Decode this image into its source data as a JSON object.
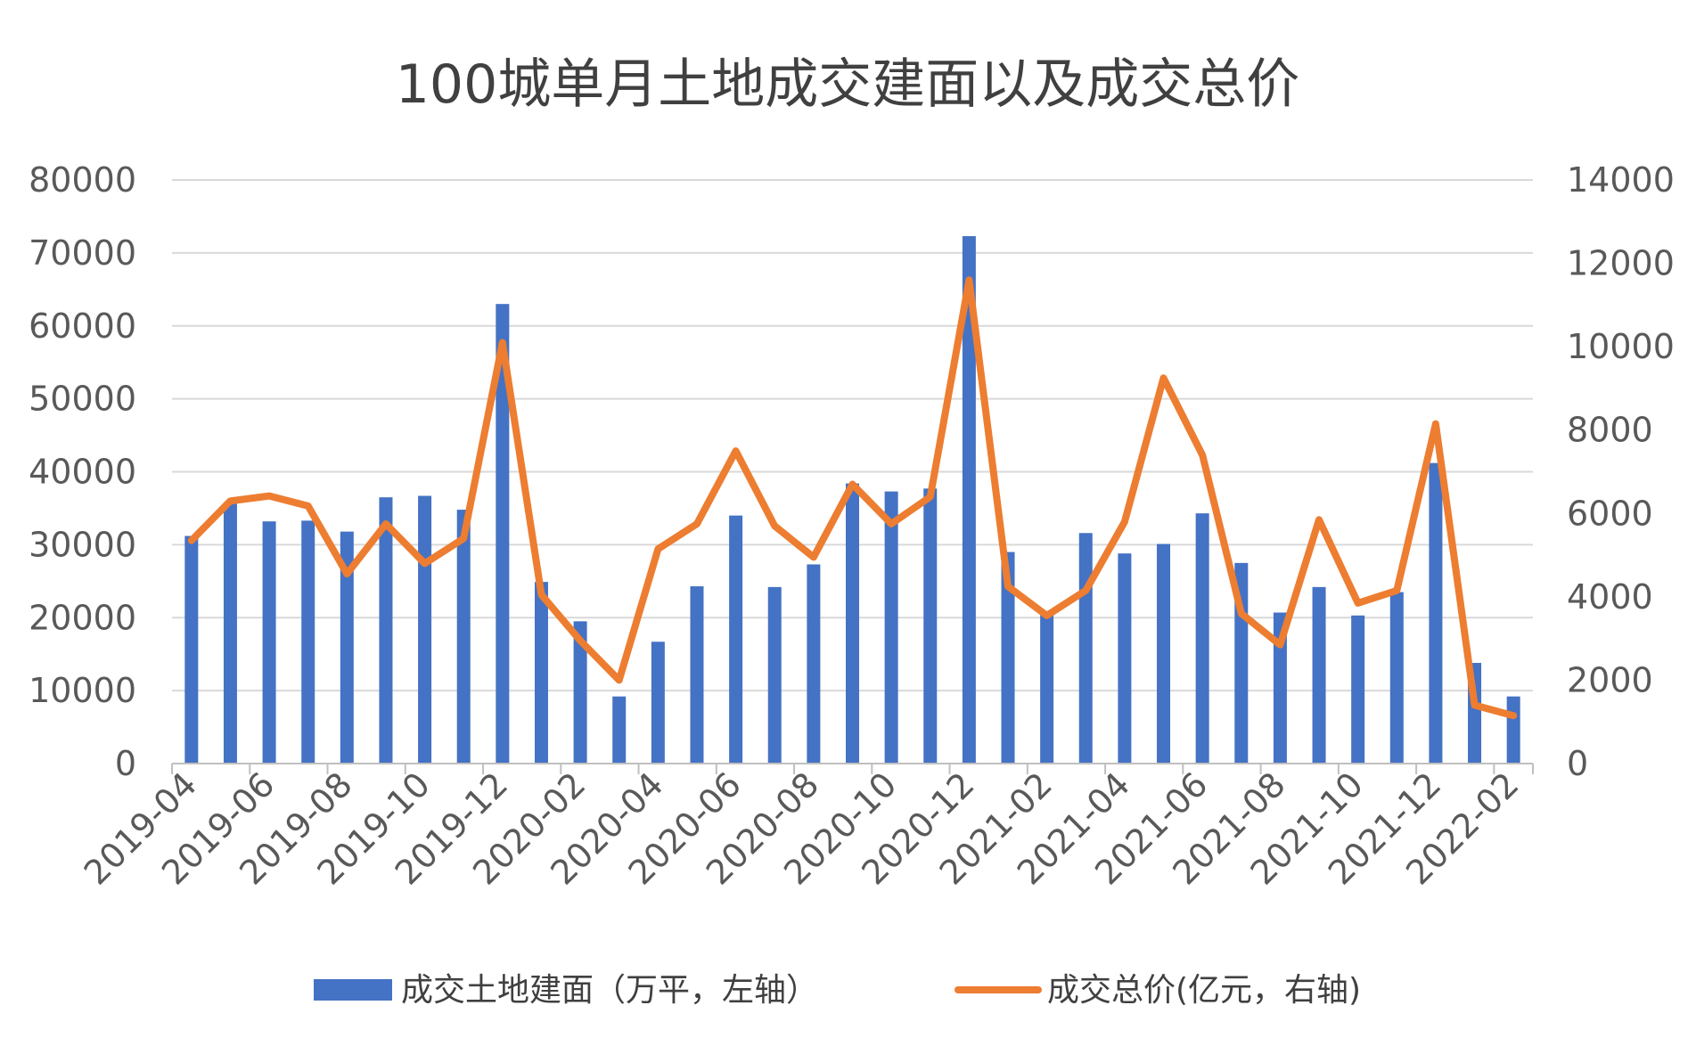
{
  "chart_data": {
    "type": "bar",
    "title": "100城单月土地成交建面以及成交总价",
    "categories": [
      "2019-04",
      "2019-05",
      "2019-06",
      "2019-07",
      "2019-08",
      "2019-09",
      "2019-10",
      "2019-11",
      "2019-12",
      "2020-01",
      "2020-02",
      "2020-03",
      "2020-04",
      "2020-05",
      "2020-06",
      "2020-07",
      "2020-08",
      "2020-09",
      "2020-10",
      "2020-11",
      "2020-12",
      "2021-01",
      "2021-02",
      "2021-03",
      "2021-04",
      "2021-05",
      "2021-06",
      "2021-07",
      "2021-08",
      "2021-09",
      "2021-10",
      "2021-11",
      "2021-12",
      "2022-01",
      "2022-02"
    ],
    "x_tick_labels": [
      "2019-04",
      "2019-06",
      "2019-08",
      "2019-10",
      "2019-12",
      "2020-02",
      "2020-04",
      "2020-06",
      "2020-08",
      "2020-10",
      "2020-12",
      "2021-02",
      "2021-04",
      "2021-06",
      "2021-08",
      "2021-10",
      "2021-12",
      "2022-02"
    ],
    "series": [
      {
        "name": "成交土地建面（万平，左轴）",
        "type": "bar",
        "axis": "left",
        "color": "#4472C4",
        "values": [
          31200,
          35800,
          33200,
          33300,
          31800,
          36500,
          36700,
          34800,
          63000,
          24900,
          19500,
          9200,
          16700,
          24300,
          34000,
          24200,
          27300,
          38400,
          37300,
          37700,
          72300,
          29000,
          20500,
          31600,
          28800,
          30100,
          34300,
          27500,
          20700,
          24200,
          20300,
          23500,
          41200,
          13800,
          9200
        ]
      },
      {
        "name": "成交总价(亿元，右轴)",
        "type": "line",
        "axis": "right",
        "color": "#ED7D31",
        "values": [
          5350,
          6300,
          6420,
          6180,
          4550,
          5750,
          4800,
          5400,
          10100,
          4050,
          2950,
          2000,
          5150,
          5750,
          7500,
          5700,
          4950,
          6700,
          5750,
          6400,
          11600,
          4250,
          3550,
          4150,
          5800,
          9250,
          7400,
          3600,
          2850,
          5850,
          3850,
          4150,
          8150,
          1400,
          1150
        ]
      }
    ],
    "ylim_left": [
      0,
      80000
    ],
    "yticks_left": [
      "0",
      "10000",
      "20000",
      "30000",
      "40000",
      "50000",
      "60000",
      "70000",
      "80000"
    ],
    "ylim_right": [
      0,
      14000
    ],
    "yticks_right": [
      "0",
      "2000",
      "4000",
      "6000",
      "8000",
      "10000",
      "12000",
      "14000"
    ],
    "grid": true,
    "legend_position": "bottom"
  }
}
